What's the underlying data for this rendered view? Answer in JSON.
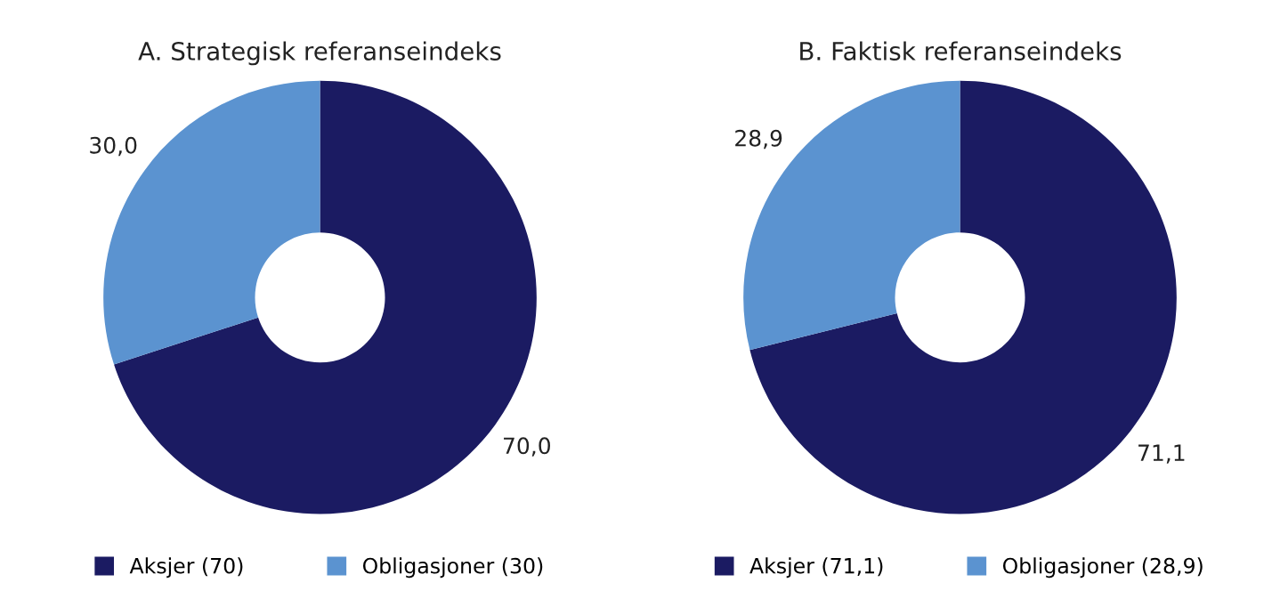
{
  "chart_data": [
    {
      "type": "donut",
      "title": "A. Strategisk referanseindeks",
      "categories": [
        "Aksjer (70)",
        "Obligasjoner (30)"
      ],
      "values": [
        70.0,
        30.0
      ],
      "colors": [
        "#1b1b62",
        "#5b93d0"
      ],
      "value_labels": [
        "70,0",
        "30,0"
      ],
      "legend": "bottom"
    },
    {
      "type": "donut",
      "title": "B. Faktisk referanseindeks",
      "categories": [
        "Aksjer (71,1)",
        "Obligasjoner (28,9)"
      ],
      "values": [
        71.1,
        28.9
      ],
      "colors": [
        "#1b1b62",
        "#5b93d0"
      ],
      "value_labels": [
        "71,1",
        "28,9"
      ],
      "legend": "bottom"
    }
  ]
}
